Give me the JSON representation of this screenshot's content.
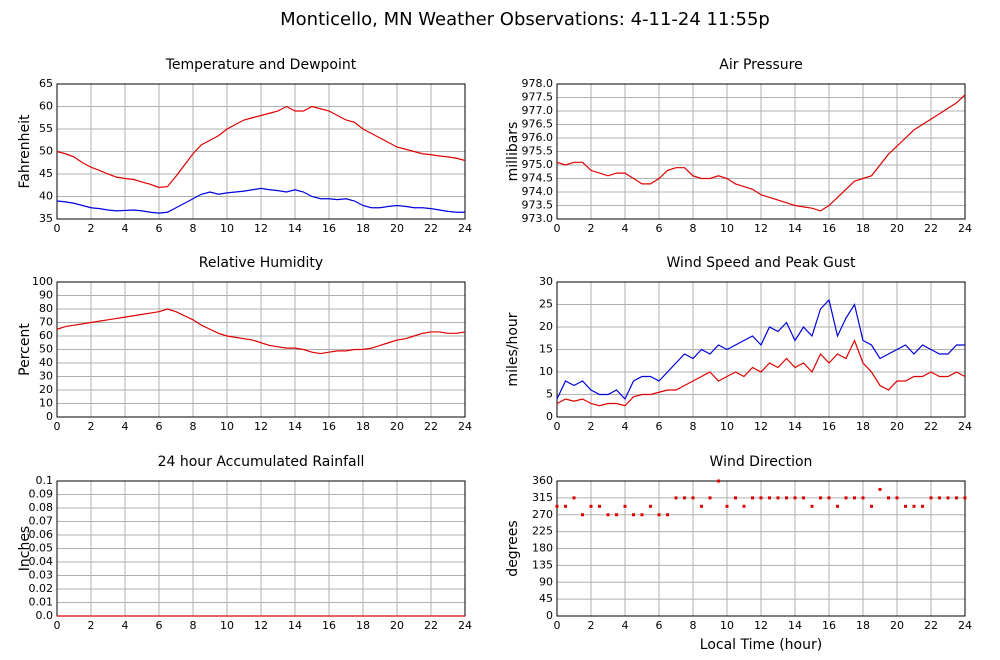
{
  "title": "Monticello, MN Weather Observations: 4-11-24 11:55p",
  "chart_data": [
    {
      "type": "line",
      "title": "Temperature and Dewpoint",
      "ylabel": "Fahrenheit",
      "x": [
        0,
        0.5,
        1,
        1.5,
        2,
        2.5,
        3,
        3.5,
        4,
        4.5,
        5,
        5.5,
        6,
        6.5,
        7,
        7.5,
        8,
        8.5,
        9,
        9.5,
        10,
        10.5,
        11,
        11.5,
        12,
        12.5,
        13,
        13.5,
        14,
        14.5,
        15,
        15.5,
        16,
        16.5,
        17,
        17.5,
        18,
        18.5,
        19,
        19.5,
        20,
        20.5,
        21,
        21.5,
        22,
        22.5,
        23,
        23.5,
        24
      ],
      "series": [
        {
          "color": "#e00000",
          "values": [
            50,
            49.5,
            48.8,
            47.5,
            46.5,
            45.8,
            45,
            44.3,
            44,
            43.8,
            43.2,
            42.7,
            42,
            42.2,
            44.5,
            47,
            49.5,
            51.5,
            52.5,
            53.5,
            55,
            56,
            57,
            57.5,
            58,
            58.5,
            59,
            60,
            59,
            59,
            60,
            59.5,
            59,
            58,
            57,
            56.5,
            55,
            54,
            53,
            52,
            51,
            50.5,
            50,
            49.5,
            49.3,
            49,
            48.8,
            48.5,
            48
          ]
        },
        {
          "color": "#0000e0",
          "values": [
            39,
            38.8,
            38.5,
            38,
            37.5,
            37.3,
            37,
            36.8,
            36.9,
            37,
            36.8,
            36.5,
            36.3,
            36.5,
            37.5,
            38.5,
            39.5,
            40.5,
            41,
            40.5,
            40.8,
            41,
            41.2,
            41.5,
            41.8,
            41.5,
            41.3,
            41,
            41.5,
            41,
            40,
            39.5,
            39.5,
            39.3,
            39.5,
            39,
            38,
            37.5,
            37.5,
            37.8,
            38,
            37.8,
            37.5,
            37.5,
            37.3,
            37,
            36.7,
            36.5,
            36.5
          ]
        }
      ],
      "xlim": [
        0,
        24
      ],
      "xticks": [
        0,
        2,
        4,
        6,
        8,
        10,
        12,
        14,
        16,
        18,
        20,
        22,
        24
      ],
      "ylim": [
        35,
        65
      ],
      "yticks": [
        35,
        40,
        45,
        50,
        55,
        60,
        65
      ],
      "grid": true
    },
    {
      "type": "line",
      "title": "Air Pressure",
      "ylabel": "millibars",
      "x": [
        0,
        0.5,
        1,
        1.5,
        2,
        2.5,
        3,
        3.5,
        4,
        4.5,
        5,
        5.5,
        6,
        6.5,
        7,
        7.5,
        8,
        8.5,
        9,
        9.5,
        10,
        10.5,
        11,
        11.5,
        12,
        12.5,
        13,
        13.5,
        14,
        14.5,
        15,
        15.5,
        16,
        16.5,
        17,
        17.5,
        18,
        18.5,
        19,
        19.5,
        20,
        20.5,
        21,
        21.5,
        22,
        22.5,
        23,
        23.5,
        24
      ],
      "series": [
        {
          "color": "#e00000",
          "values": [
            975.1,
            975,
            975.1,
            975.1,
            974.8,
            974.7,
            974.6,
            974.7,
            974.7,
            974.5,
            974.3,
            974.3,
            974.5,
            974.8,
            974.9,
            974.9,
            974.6,
            974.5,
            974.5,
            974.6,
            974.5,
            974.3,
            974.2,
            974.1,
            973.9,
            973.8,
            973.7,
            973.6,
            973.5,
            973.45,
            973.4,
            973.3,
            973.5,
            973.8,
            974.1,
            974.4,
            974.5,
            974.6,
            975,
            975.4,
            975.7,
            976,
            976.3,
            976.5,
            976.7,
            976.9,
            977.1,
            977.3,
            977.6
          ]
        }
      ],
      "xlim": [
        0,
        24
      ],
      "xticks": [
        0,
        2,
        4,
        6,
        8,
        10,
        12,
        14,
        16,
        18,
        20,
        22,
        24
      ],
      "ylim": [
        973,
        978
      ],
      "yticks": [
        {
          "value": 973,
          "label": "973.0"
        },
        973.5,
        {
          "value": 974,
          "label": "974.0"
        },
        974.5,
        {
          "value": 975,
          "label": "975.0"
        },
        975.5,
        {
          "value": 976,
          "label": "976.0"
        },
        976.5,
        {
          "value": 977,
          "label": "977.0"
        },
        977.5,
        {
          "value": 978,
          "label": "978.0"
        }
      ],
      "grid": true
    },
    {
      "type": "line",
      "title": "Relative Humidity",
      "ylabel": "Percent",
      "x": [
        0,
        0.5,
        1,
        1.5,
        2,
        2.5,
        3,
        3.5,
        4,
        4.5,
        5,
        5.5,
        6,
        6.5,
        7,
        7.5,
        8,
        8.5,
        9,
        9.5,
        10,
        10.5,
        11,
        11.5,
        12,
        12.5,
        13,
        13.5,
        14,
        14.5,
        15,
        15.5,
        16,
        16.5,
        17,
        17.5,
        18,
        18.5,
        19,
        19.5,
        20,
        20.5,
        21,
        21.5,
        22,
        22.5,
        23,
        23.5,
        24
      ],
      "series": [
        {
          "color": "#e00000",
          "values": [
            65,
            67,
            68,
            69,
            70,
            71,
            72,
            73,
            74,
            75,
            76,
            77,
            78,
            80,
            78,
            75,
            72,
            68,
            65,
            62,
            60,
            59,
            58,
            57,
            55,
            53,
            52,
            51,
            51,
            50,
            48,
            47,
            48,
            49,
            49,
            50,
            50,
            51,
            53,
            55,
            57,
            58,
            60,
            62,
            63,
            63,
            62,
            62,
            63
          ]
        }
      ],
      "xlim": [
        0,
        24
      ],
      "xticks": [
        0,
        2,
        4,
        6,
        8,
        10,
        12,
        14,
        16,
        18,
        20,
        22,
        24
      ],
      "ylim": [
        0,
        100
      ],
      "yticks": [
        0,
        10,
        20,
        30,
        40,
        50,
        60,
        70,
        80,
        90,
        100
      ],
      "grid": true
    },
    {
      "type": "line",
      "title": "Wind Speed and Peak Gust",
      "ylabel": "miles/hour",
      "x": [
        0,
        0.5,
        1,
        1.5,
        2,
        2.5,
        3,
        3.5,
        4,
        4.5,
        5,
        5.5,
        6,
        6.5,
        7,
        7.5,
        8,
        8.5,
        9,
        9.5,
        10,
        10.5,
        11,
        11.5,
        12,
        12.5,
        13,
        13.5,
        14,
        14.5,
        15,
        15.5,
        16,
        16.5,
        17,
        17.5,
        18,
        18.5,
        19,
        19.5,
        20,
        20.5,
        21,
        21.5,
        22,
        22.5,
        23,
        23.5,
        24
      ],
      "series": [
        {
          "color": "#e00000",
          "values": [
            3,
            4,
            3.5,
            4,
            3,
            2.5,
            3,
            3,
            2.5,
            4.5,
            5,
            5,
            5.5,
            6,
            6,
            7,
            8,
            9,
            10,
            8,
            9,
            10,
            9,
            11,
            10,
            12,
            11,
            13,
            11,
            12,
            10,
            14,
            12,
            14,
            13,
            17,
            12,
            10,
            7,
            6,
            8,
            8,
            9,
            9,
            10,
            9,
            9,
            10,
            9
          ]
        },
        {
          "color": "#0000e0",
          "values": [
            4,
            8,
            7,
            8,
            6,
            5,
            5,
            6,
            4,
            8,
            9,
            9,
            8,
            10,
            12,
            14,
            13,
            15,
            14,
            16,
            15,
            16,
            17,
            18,
            16,
            20,
            19,
            21,
            17,
            20,
            18,
            24,
            26,
            18,
            22,
            25,
            17,
            16,
            13,
            14,
            15,
            16,
            14,
            16,
            15,
            14,
            14,
            16,
            16
          ]
        }
      ],
      "xlim": [
        0,
        24
      ],
      "xticks": [
        0,
        2,
        4,
        6,
        8,
        10,
        12,
        14,
        16,
        18,
        20,
        22,
        24
      ],
      "ylim": [
        0,
        30
      ],
      "yticks": [
        0,
        5,
        10,
        15,
        20,
        25,
        30
      ],
      "grid": true
    },
    {
      "type": "line",
      "title": "24 hour Accumulated Rainfall",
      "ylabel": "Inches",
      "x": [
        0,
        24
      ],
      "series": [
        {
          "color": "#e00000",
          "values": [
            0,
            0
          ]
        }
      ],
      "xlim": [
        0,
        24
      ],
      "xticks": [
        0,
        2,
        4,
        6,
        8,
        10,
        12,
        14,
        16,
        18,
        20,
        22,
        24
      ],
      "ylim": [
        0,
        0.1
      ],
      "yticks": [
        {
          "value": 0,
          "label": "0.0"
        },
        0.01,
        0.02,
        0.03,
        0.04,
        0.05,
        0.06,
        0.07,
        0.08,
        0.09,
        0.1
      ],
      "grid": true
    },
    {
      "type": "scatter",
      "title": "Wind Direction",
      "ylabel": "degrees",
      "xlabel": "Local Time (hour)",
      "x": [
        0,
        0.5,
        1,
        1.5,
        2,
        2.5,
        3,
        3.5,
        4,
        4.5,
        5,
        5.5,
        6,
        6.5,
        7,
        7.5,
        8,
        8.5,
        9,
        9.5,
        10,
        10.5,
        11,
        11.5,
        12,
        12.5,
        13,
        13.5,
        14,
        14.5,
        15,
        15.5,
        16,
        16.5,
        17,
        17.5,
        18,
        18.5,
        19,
        19.5,
        20,
        20.5,
        21,
        21.5,
        22,
        22.5,
        23,
        23.5,
        24
      ],
      "series": [
        {
          "color": "#e00000",
          "values": [
            292.5,
            292.5,
            315,
            270,
            292.5,
            292.5,
            270,
            270,
            292.5,
            270,
            270,
            292.5,
            270,
            270,
            315,
            315,
            315,
            292.5,
            315,
            360,
            292.5,
            315,
            292.5,
            315,
            315,
            315,
            315,
            315,
            315,
            315,
            292.5,
            315,
            315,
            292.5,
            315,
            315,
            315,
            292.5,
            337.5,
            315,
            315,
            292.5,
            292.5,
            292.5,
            315,
            315,
            315,
            315,
            315
          ]
        }
      ],
      "xlim": [
        0,
        24
      ],
      "xticks": [
        0,
        2,
        4,
        6,
        8,
        10,
        12,
        14,
        16,
        18,
        20,
        22,
        24
      ],
      "ylim": [
        0,
        360
      ],
      "yticks": [
        0,
        45,
        90,
        135,
        180,
        225,
        270,
        315,
        360
      ],
      "grid": true
    }
  ]
}
